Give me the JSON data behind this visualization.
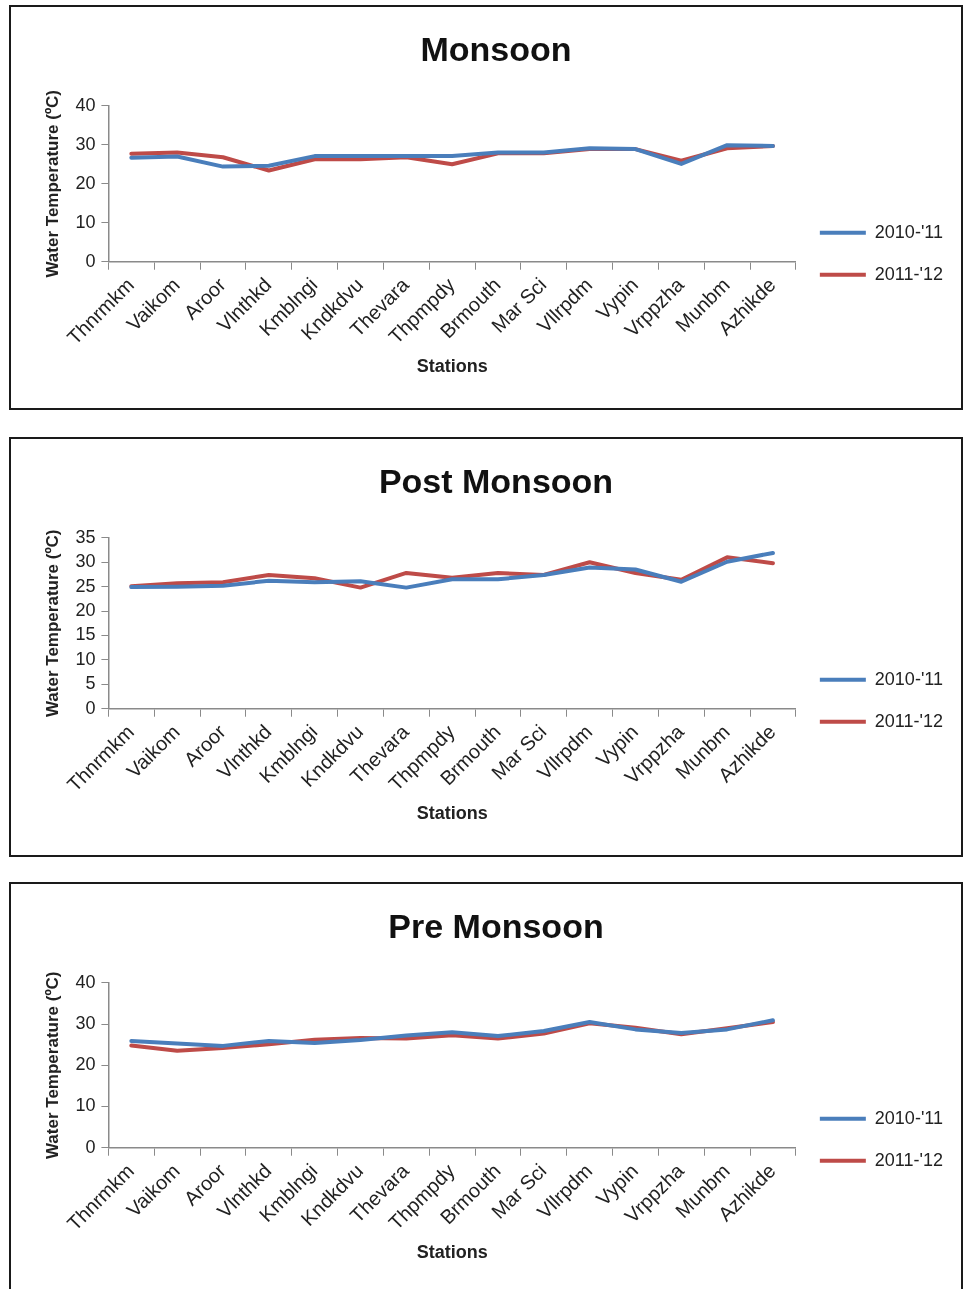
{
  "chart_data": [
    {
      "type": "line",
      "title": "Monsoon",
      "xlabel": "Stations",
      "ylabel": "Water Temperature (ºC)",
      "categories": [
        "Thnrmkm",
        "Vaikom",
        "Aroor",
        "Vlnthkd",
        "Kmblngi",
        "Kndkdvu",
        "Thevara",
        "Thpmpdy",
        "Brmouth",
        "Mar Sci",
        "Vllrpdm",
        "Vypin",
        "Vrppzha",
        "Munbm",
        "Azhikde"
      ],
      "series": [
        {
          "name": "2010-'11",
          "color": "#4a7ebb",
          "values": [
            26.7,
            27.0,
            24.4,
            24.6,
            27.1,
            27.1,
            27.1,
            27.1,
            28.0,
            28.0,
            29.1,
            28.9,
            25.1,
            29.9,
            29.7
          ]
        },
        {
          "name": "2011-'12",
          "color": "#be4b48",
          "values": [
            27.7,
            28.0,
            26.8,
            23.4,
            26.3,
            26.3,
            26.8,
            25.0,
            27.8,
            27.8,
            28.9,
            28.9,
            25.9,
            29.1,
            29.7
          ]
        }
      ],
      "ylim": [
        0,
        40
      ],
      "yticks": [
        0,
        10,
        20,
        30,
        40
      ],
      "grid": false,
      "legend": "right",
      "marker": "none",
      "line_style": "solid"
    },
    {
      "type": "line",
      "title": "Post Monsoon",
      "xlabel": "Stations",
      "ylabel": "Water Temperature (ºC)",
      "categories": [
        "Thnrmkm",
        "Vaikom",
        "Aroor",
        "Vlnthkd",
        "Kmblngi",
        "Kndkdvu",
        "Thevara",
        "Thpmpdy",
        "Brmouth",
        "Mar Sci",
        "Vllrpdm",
        "Vypin",
        "Vrppzha",
        "Munbm",
        "Azhikde"
      ],
      "series": [
        {
          "name": "2010-'11",
          "color": "#4a7ebb",
          "values": [
            24.9,
            25.0,
            25.2,
            26.2,
            25.9,
            26.1,
            24.8,
            26.5,
            26.5,
            27.4,
            28.9,
            28.5,
            26.0,
            30.1,
            31.9
          ]
        },
        {
          "name": "2011-'12",
          "color": "#be4b48",
          "values": [
            25.1,
            25.7,
            25.9,
            27.4,
            26.7,
            24.8,
            27.8,
            26.8,
            27.8,
            27.4,
            30.0,
            27.8,
            26.4,
            31.0,
            29.8
          ]
        }
      ],
      "ylim": [
        0,
        35
      ],
      "yticks": [
        0,
        5,
        10,
        15,
        20,
        25,
        30,
        35
      ],
      "grid": false,
      "legend": "right",
      "marker": "none",
      "line_style": "solid"
    },
    {
      "type": "line",
      "title": "Pre Monsoon",
      "xlabel": "Stations",
      "ylabel": "Water Temperature (ºC)",
      "categories": [
        "Thnrmkm",
        "Vaikom",
        "Aroor",
        "Vlnthkd",
        "Kmblngi",
        "Kndkdvu",
        "Thevara",
        "Thpmpdy",
        "Brmouth",
        "Mar Sci",
        "Vllrpdm",
        "Vypin",
        "Vrppzha",
        "Munbm",
        "Azhikde"
      ],
      "series": [
        {
          "name": "2010-'11",
          "color": "#4a7ebb",
          "values": [
            25.9,
            25.3,
            24.7,
            25.9,
            25.4,
            26.1,
            27.2,
            28.0,
            27.1,
            28.3,
            30.5,
            28.7,
            27.8,
            28.7,
            30.9
          ]
        },
        {
          "name": "2011-'12",
          "color": "#be4b48",
          "values": [
            24.8,
            23.5,
            24.2,
            25.1,
            26.2,
            26.6,
            26.5,
            27.3,
            26.5,
            27.7,
            30.2,
            29.1,
            27.5,
            29.0,
            30.5
          ]
        }
      ],
      "ylim": [
        0,
        40
      ],
      "yticks": [
        0,
        10,
        20,
        30,
        40
      ],
      "grid": false,
      "legend": "right",
      "marker": "none",
      "line_style": "solid"
    }
  ]
}
